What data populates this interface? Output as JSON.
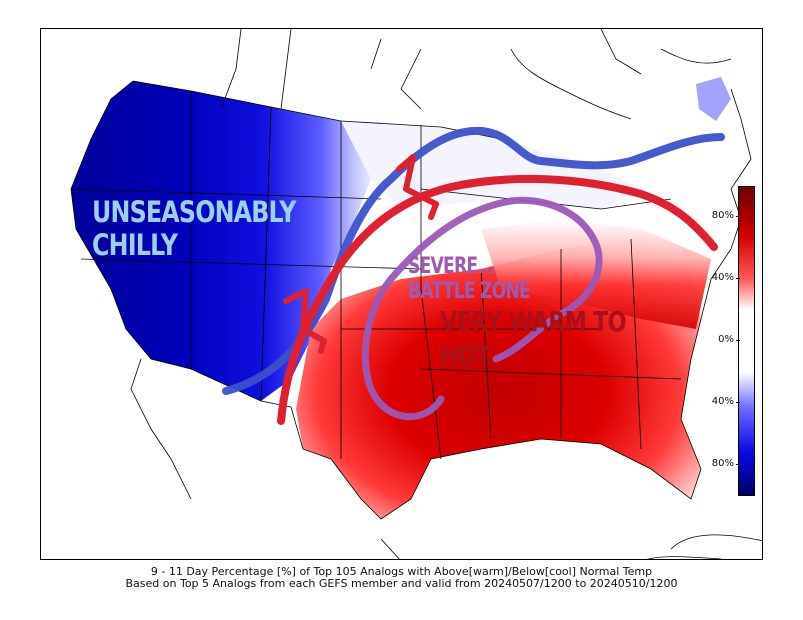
{
  "annotations": {
    "chilly": [
      "UNSEASONABLY",
      "CHILLY"
    ],
    "severe": [
      "SEVERE...",
      "BATTLE ZONE"
    ],
    "hot": [
      "VERY WARM TO",
      "HOT"
    ]
  },
  "colorbar": {
    "ticks": [
      "80%",
      "40%",
      "0%",
      "40%",
      "80%"
    ],
    "warm_color": "#d40000",
    "cool_color": "#0a0ae6"
  },
  "caption": {
    "line1": "9 - 11 Day Percentage [%] of Top 105 Analogs with Above[warm]/Below[cool] Normal Temp",
    "line2": "Based on Top 5 Analogs from each GEFS member and valid from 20240507/1200 to 20240510/1200"
  },
  "lines": {
    "cold_front_color": "#3d50cc",
    "warm_boundary_color": "#e02030",
    "severe_zone_color": "#9b59b6"
  }
}
